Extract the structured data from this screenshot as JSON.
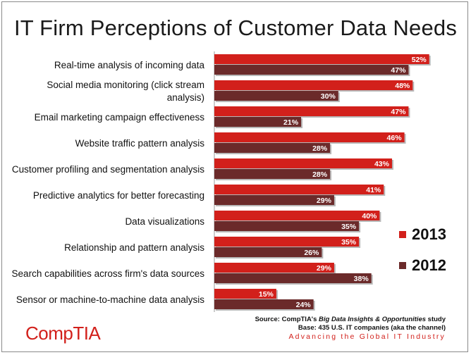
{
  "chart_data": {
    "type": "bar",
    "orientation": "horizontal",
    "title": "IT Firm Perceptions of Customer Data Needs",
    "categories": [
      [
        "Real-time analysis of incoming data"
      ],
      [
        "Social media monitoring (click stream",
        "analysis)"
      ],
      [
        "Email marketing campaign effectiveness"
      ],
      [
        "Website traffic pattern analysis"
      ],
      [
        "Customer profiling and segmentation analysis"
      ],
      [
        "Predictive analytics for better forecasting"
      ],
      [
        "Data visualizations"
      ],
      [
        "Relationship and pattern analysis"
      ],
      [
        "Search capabilities across firm's data sources"
      ],
      [
        "Sensor or machine-to-machine data analysis"
      ]
    ],
    "series": [
      {
        "name": "2013",
        "color": "#d2201b",
        "values": [
          52,
          48,
          47,
          46,
          43,
          41,
          40,
          35,
          29,
          15
        ],
        "labels": [
          "52%",
          "48%",
          "47%",
          "46%",
          "43%",
          "41%",
          "40%",
          "35%",
          "29%",
          "15%"
        ]
      },
      {
        "name": "2012",
        "color": "#6b2a2a",
        "values": [
          47,
          30,
          21,
          28,
          28,
          29,
          35,
          26,
          38,
          24
        ],
        "labels": [
          "47%",
          "30%",
          "21%",
          "28%",
          "28%",
          "29%",
          "35%",
          "26%",
          "38%",
          "24%"
        ]
      }
    ],
    "xlim": [
      0,
      60
    ],
    "legend": {
      "position": "right",
      "order": [
        "2013",
        "2012"
      ]
    }
  },
  "branding": {
    "logo": "CompTIA",
    "source_prefix": "Source: CompTIA's ",
    "source_title": "Big Data Insights & Opportunities",
    "source_suffix": " study",
    "base_note": "Base: 435 U.S. IT companies (aka the channel)",
    "tagline": "Advancing the Global IT Industry"
  }
}
